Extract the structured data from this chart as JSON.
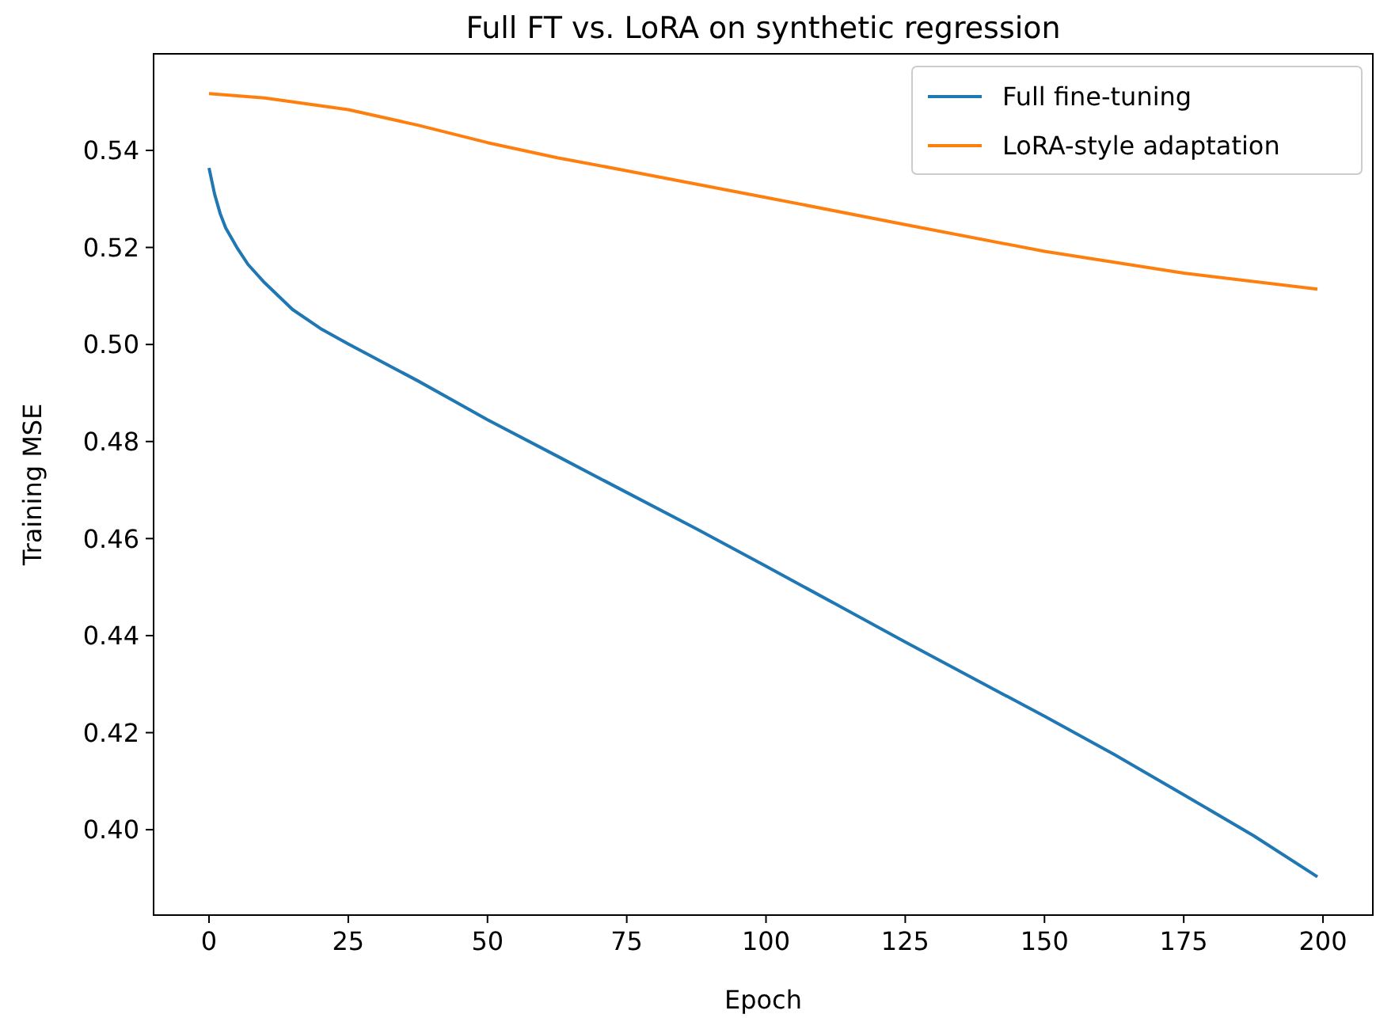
{
  "chart_data": {
    "type": "line",
    "title": "Full FT vs. LoRA on synthetic regression",
    "xlabel": "Epoch",
    "ylabel": "Training MSE",
    "xlim": [
      -9.95,
      208.95
    ],
    "ylim": [
      0.3824,
      0.5599
    ],
    "xticks": [
      0,
      25,
      50,
      75,
      100,
      125,
      150,
      175,
      200
    ],
    "yticks": [
      {
        "value": 0.4,
        "label": "0.40"
      },
      {
        "value": 0.42,
        "label": "0.42"
      },
      {
        "value": 0.44,
        "label": "0.44"
      },
      {
        "value": 0.46,
        "label": "0.46"
      },
      {
        "value": 0.48,
        "label": "0.48"
      },
      {
        "value": 0.5,
        "label": "0.50"
      },
      {
        "value": 0.52,
        "label": "0.52"
      },
      {
        "value": 0.54,
        "label": "0.54"
      }
    ],
    "grid": false,
    "legend": "top right",
    "marker": "none",
    "line_style": "solid",
    "series": [
      {
        "name": "Full fine-tuning",
        "color": "#1f77b4",
        "x": [
          0,
          1,
          2,
          3,
          5,
          7,
          10,
          15,
          20,
          25,
          37.5,
          50,
          62.5,
          75,
          87.5,
          100,
          112.5,
          125,
          137.5,
          150,
          162.5,
          175,
          187.5,
          199
        ],
        "values": [
          0.5364,
          0.531,
          0.527,
          0.524,
          0.52,
          0.5165,
          0.5127,
          0.5072,
          0.5033,
          0.5001,
          0.4925,
          0.4845,
          0.477,
          0.4695,
          0.462,
          0.4543,
          0.4465,
          0.4387,
          0.431,
          0.4234,
          0.4155,
          0.4072,
          0.3988,
          0.3903
        ]
      },
      {
        "name": "LoRA-style adaptation",
        "color": "#ff7f0e",
        "x": [
          0,
          10,
          25,
          37.5,
          50,
          62.5,
          75,
          100,
          125,
          150,
          175,
          199
        ],
        "values": [
          0.5517,
          0.5508,
          0.5484,
          0.5452,
          0.5416,
          0.5385,
          0.5358,
          0.5303,
          0.5247,
          0.5192,
          0.5147,
          0.5114
        ]
      }
    ]
  }
}
